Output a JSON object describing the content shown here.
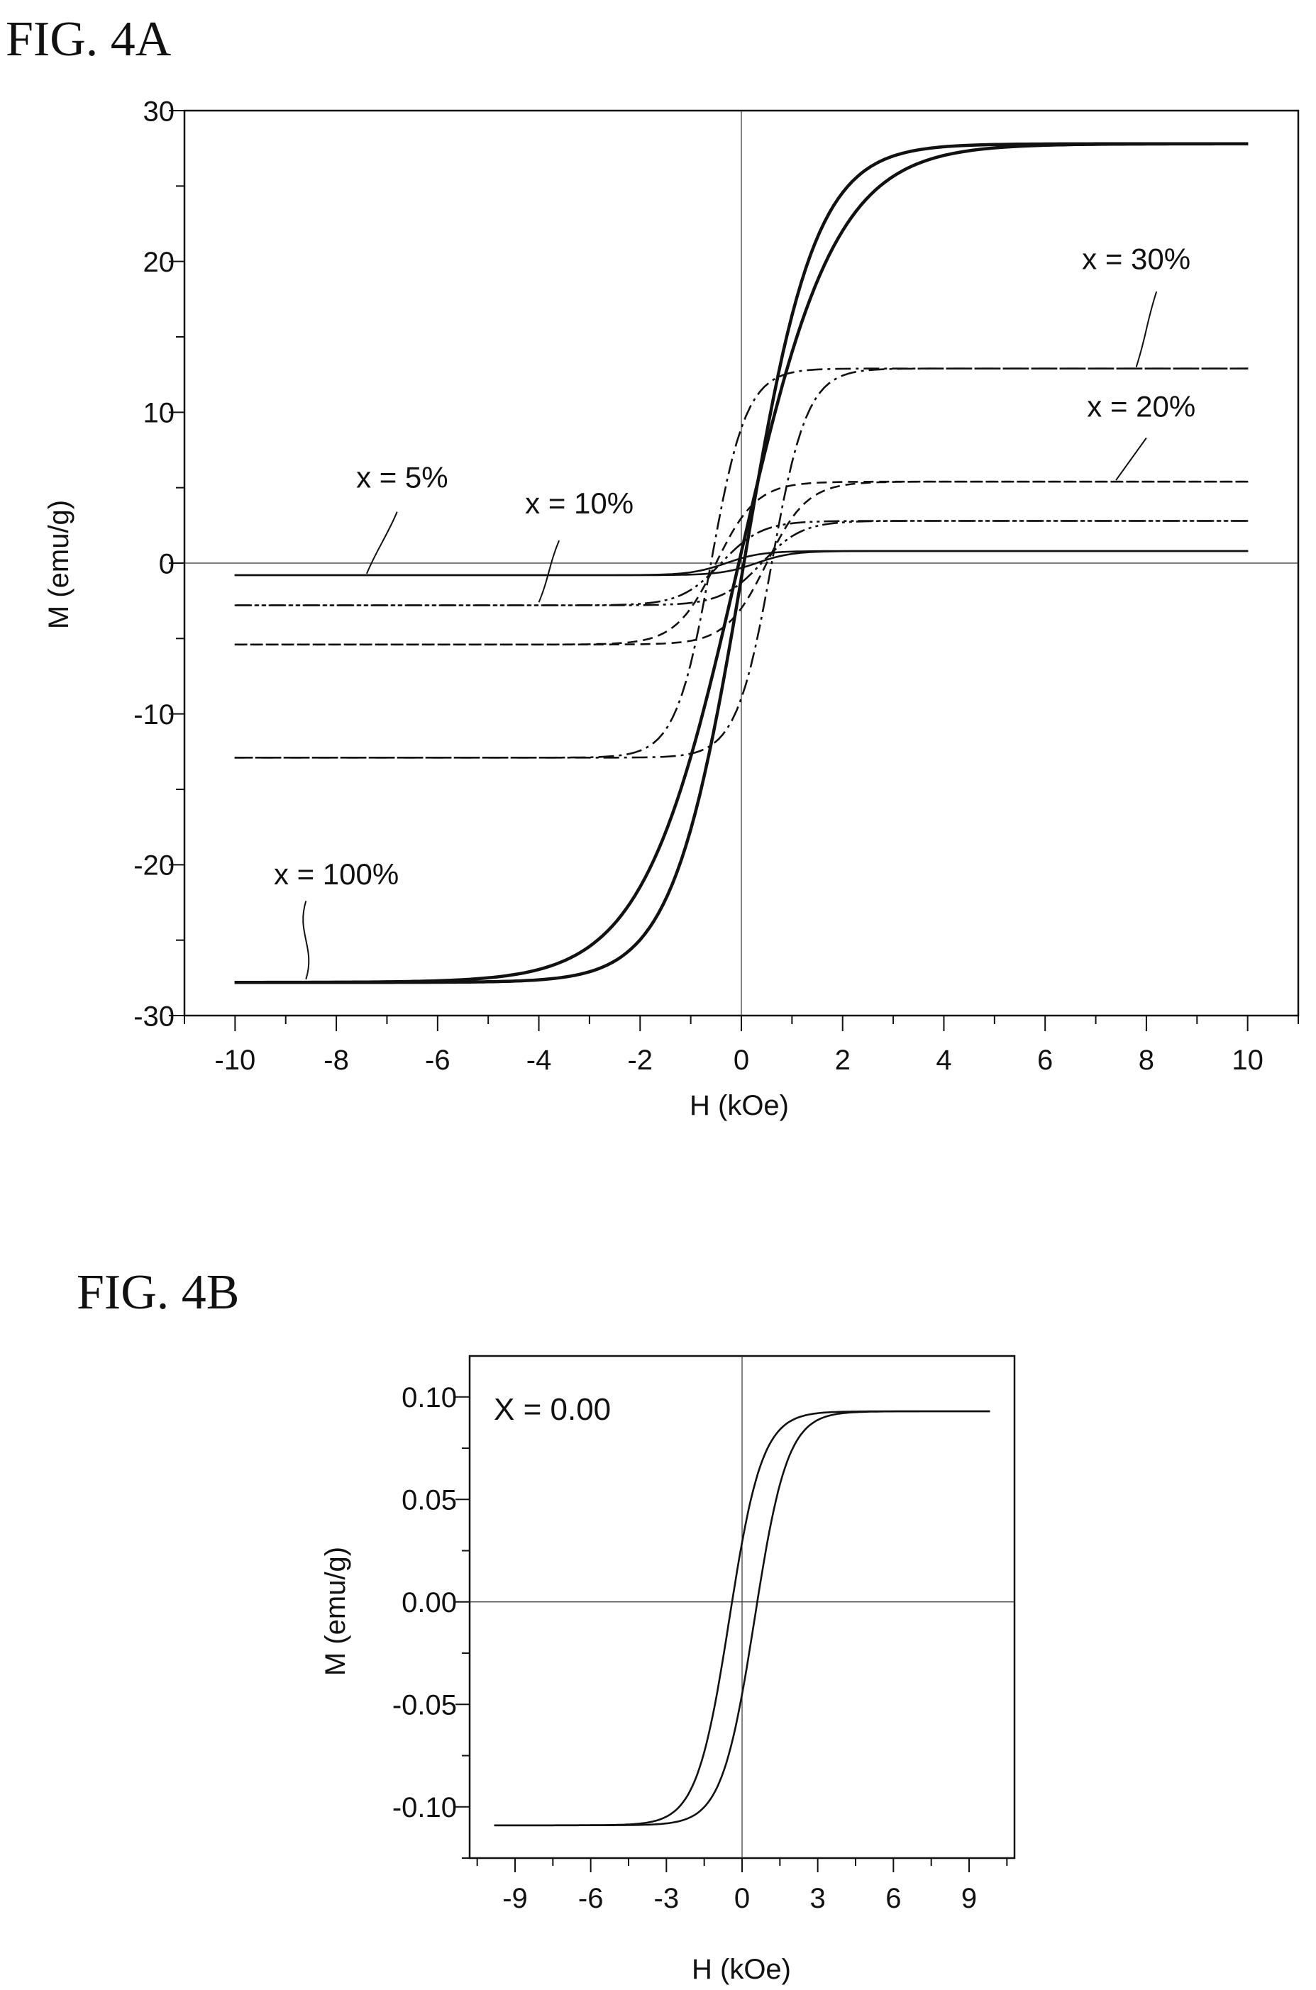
{
  "chart_data": [
    {
      "figure_label": "FIG. 4A",
      "type": "line",
      "xlabel": "H (kOe)",
      "ylabel": "M (emu/g)",
      "xlim": [
        -11,
        11
      ],
      "ylim": [
        -30,
        30
      ],
      "xticks": [
        -10,
        -8,
        -6,
        -4,
        -2,
        0,
        2,
        4,
        6,
        8,
        10
      ],
      "yticks": [
        -30,
        -20,
        -10,
        0,
        10,
        20,
        30
      ],
      "grid": false,
      "zero_lines": true,
      "series": [
        {
          "name": "x = 100%",
          "dash": "solid",
          "ms": 27.8,
          "hc": 0.05,
          "h0": 1.4,
          "h0b": 1.9,
          "bias": 0.0,
          "label_pos": [
            -8.0,
            -21.3
          ],
          "leader": [
            [
              -8.6,
              -22.4
            ],
            [
              -8.6,
              -27.6
            ]
          ]
        },
        {
          "name": "x = 30%",
          "dash": "dashdot",
          "ms": 12.9,
          "hc": 0.6,
          "h0": 0.7,
          "h0b": 0.7,
          "bias": 0.0,
          "label_pos": [
            7.8,
            19.5
          ],
          "leader": [
            [
              8.2,
              18.0
            ],
            [
              7.8,
              13.0
            ]
          ]
        },
        {
          "name": "x = 20%",
          "dash": "dashed",
          "ms": 5.4,
          "hc": 0.5,
          "h0": 0.8,
          "h0b": 0.8,
          "bias": 0.0,
          "label_pos": [
            7.9,
            9.7
          ],
          "leader": [
            [
              8.0,
              8.3
            ],
            [
              7.4,
              5.5
            ]
          ]
        },
        {
          "name": "x = 10%",
          "dash": "dashdotdot",
          "ms": 2.8,
          "hc": 0.4,
          "h0": 0.8,
          "h0b": 0.8,
          "bias": 0.0,
          "label_pos": [
            -3.2,
            3.3
          ],
          "leader": [
            [
              -3.6,
              1.5
            ],
            [
              -4.0,
              -2.6
            ]
          ]
        },
        {
          "name": "x = 5%",
          "dash": "solid",
          "ms": 0.8,
          "hc": 0.3,
          "h0": 0.7,
          "h0b": 0.7,
          "bias": 0.0,
          "label_pos": [
            -6.7,
            5.0
          ],
          "leader": [
            [
              -6.8,
              3.4
            ],
            [
              -7.4,
              -0.7
            ]
          ]
        }
      ]
    },
    {
      "figure_label": "FIG. 4B",
      "type": "line",
      "xlabel": "H (kOe)",
      "ylabel": "M (emu/g)",
      "xlim": [
        -10.8,
        10.8
      ],
      "ylim": [
        -0.125,
        0.12
      ],
      "xticks": [
        -9,
        -6,
        -3,
        0,
        3,
        6,
        9
      ],
      "yticks": [
        -0.1,
        -0.05,
        0.0,
        0.05,
        0.1
      ],
      "ytick_labels": [
        "-0.10",
        "-0.05",
        "0.00",
        "0.05",
        "0.10"
      ],
      "grid": false,
      "zero_lines": true,
      "annotation": "X = 0.00",
      "series": [
        {
          "name": "",
          "dash": "solid",
          "ms": 0.101,
          "hc": 0.5,
          "h0": 1.3,
          "h0b": 1.3,
          "bias": -0.008
        }
      ]
    }
  ]
}
